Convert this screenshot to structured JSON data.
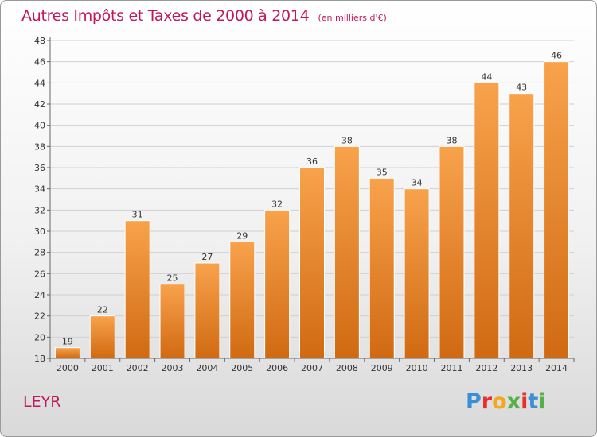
{
  "header": {
    "title": "Autres Impôts et Taxes de 2000 à 2014",
    "subtitle": "(en milliers d'€)"
  },
  "footer": {
    "commune": "LEYR",
    "logo_text": "Proxiti",
    "logo_colors": [
      "#3a8fd6",
      "#e8302a",
      "#f2a81d",
      "#55b047",
      "#e8302a",
      "#3a8fd6",
      "#55b047"
    ]
  },
  "chart_data": {
    "type": "bar",
    "categories": [
      "2000",
      "2001",
      "2002",
      "2003",
      "2004",
      "2005",
      "2006",
      "2007",
      "2008",
      "2009",
      "2010",
      "2011",
      "2012",
      "2013",
      "2014"
    ],
    "values": [
      19,
      22,
      31,
      25,
      27,
      29,
      32,
      36,
      38,
      35,
      34,
      38,
      44,
      43,
      46
    ],
    "data_labels": [
      "19",
      "22",
      "31",
      "25",
      "27",
      "29",
      "32",
      "36",
      "38",
      "35",
      "34",
      "38",
      "44",
      "43",
      "46"
    ],
    "yticks": [
      "18",
      "20",
      "22",
      "24",
      "26",
      "28",
      "30",
      "32",
      "34",
      "36",
      "38",
      "40",
      "42",
      "44",
      "46",
      "48"
    ],
    "ylim": [
      18,
      48
    ],
    "grid": true,
    "colors": {
      "bar_top": "#f8a24c",
      "bar_bottom": "#d06a12",
      "grid": "#d0d0d0",
      "axis": "#666666",
      "text": "#333333"
    }
  }
}
